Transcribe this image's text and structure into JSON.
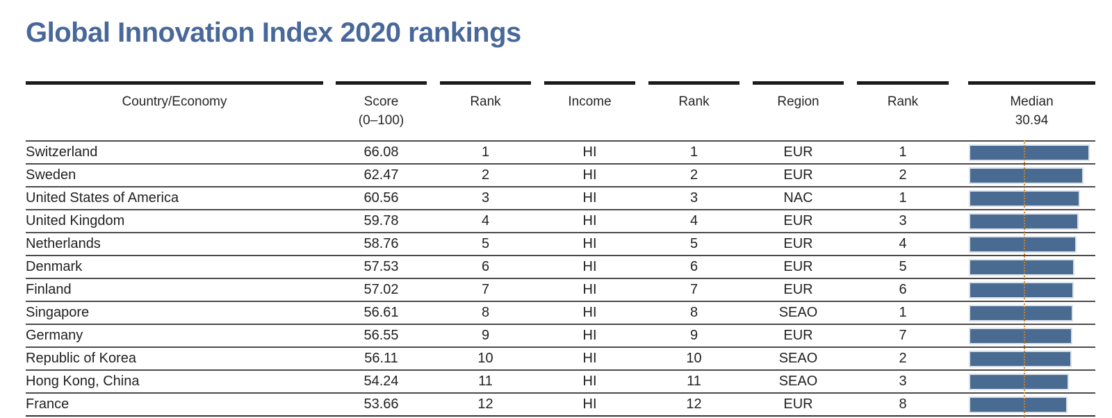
{
  "title": "Global Innovation Index 2020 rankings",
  "colors": {
    "title_blue": "#48689a",
    "bar_blue": "#4a6b91",
    "median_line_orange": "#c9822f",
    "header_rule_black": "#1b1b1b",
    "row_rule_gray": "#4a4a4a"
  },
  "table": {
    "columns": [
      {
        "label": "Country/Economy",
        "sublabel": ""
      },
      {
        "label": "Score",
        "sublabel": "(0–100)"
      },
      {
        "label": "Rank",
        "sublabel": ""
      },
      {
        "label": "Income",
        "sublabel": ""
      },
      {
        "label": "Rank",
        "sublabel": ""
      },
      {
        "label": "Region",
        "sublabel": ""
      },
      {
        "label": "Rank",
        "sublabel": ""
      },
      {
        "label": "Median",
        "sublabel": "30.94"
      }
    ],
    "rows": [
      {
        "country": "Switzerland",
        "score": "66.08",
        "score_rank": "1",
        "income": "HI",
        "income_rank": "1",
        "region": "EUR",
        "region_rank": "1",
        "bar_value": 66.08
      },
      {
        "country": "Sweden",
        "score": "62.47",
        "score_rank": "2",
        "income": "HI",
        "income_rank": "2",
        "region": "EUR",
        "region_rank": "2",
        "bar_value": 62.47
      },
      {
        "country": "United States of America",
        "score": "60.56",
        "score_rank": "3",
        "income": "HI",
        "income_rank": "3",
        "region": "NAC",
        "region_rank": "1",
        "bar_value": 60.56
      },
      {
        "country": "United Kingdom",
        "score": "59.78",
        "score_rank": "4",
        "income": "HI",
        "income_rank": "4",
        "region": "EUR",
        "region_rank": "3",
        "bar_value": 59.78
      },
      {
        "country": "Netherlands",
        "score": "58.76",
        "score_rank": "5",
        "income": "HI",
        "income_rank": "5",
        "region": "EUR",
        "region_rank": "4",
        "bar_value": 58.76
      },
      {
        "country": "Denmark",
        "score": "57.53",
        "score_rank": "6",
        "income": "HI",
        "income_rank": "6",
        "region": "EUR",
        "region_rank": "5",
        "bar_value": 57.53
      },
      {
        "country": "Finland",
        "score": "57.02",
        "score_rank": "7",
        "income": "HI",
        "income_rank": "7",
        "region": "EUR",
        "region_rank": "6",
        "bar_value": 57.02
      },
      {
        "country": "Singapore",
        "score": "56.61",
        "score_rank": "8",
        "income": "HI",
        "income_rank": "8",
        "region": "SEAO",
        "region_rank": "1",
        "bar_value": 56.61
      },
      {
        "country": "Germany",
        "score": "56.55",
        "score_rank": "9",
        "income": "HI",
        "income_rank": "9",
        "region": "EUR",
        "region_rank": "7",
        "bar_value": 56.55
      },
      {
        "country": "Republic of Korea",
        "score": "56.11",
        "score_rank": "10",
        "income": "HI",
        "income_rank": "10",
        "region": "SEAO",
        "region_rank": "2",
        "bar_value": 56.11
      },
      {
        "country": "Hong Kong, China",
        "score": "54.24",
        "score_rank": "11",
        "income": "HI",
        "income_rank": "11",
        "region": "SEAO",
        "region_rank": "3",
        "bar_value": 54.24
      },
      {
        "country": "France",
        "score": "53.66",
        "score_rank": "12",
        "income": "HI",
        "income_rank": "12",
        "region": "EUR",
        "region_rank": "8",
        "bar_value": 53.66
      }
    ],
    "median_value": 30.94
  },
  "chart_data": {
    "type": "table",
    "title": "Global Innovation Index 2020 rankings",
    "columns": [
      "Country/Economy",
      "Score (0–100)",
      "Rank",
      "Income",
      "Rank",
      "Region",
      "Rank",
      "Median 30.94"
    ],
    "bar_series": {
      "name": "Score (0–100)",
      "categories": [
        "Switzerland",
        "Sweden",
        "United States of America",
        "United Kingdom",
        "Netherlands",
        "Denmark",
        "Finland",
        "Singapore",
        "Germany",
        "Republic of Korea",
        "Hong Kong, China",
        "France"
      ],
      "values": [
        66.08,
        62.47,
        60.56,
        59.78,
        58.76,
        57.53,
        57.02,
        56.61,
        56.55,
        56.11,
        54.24,
        53.66
      ]
    },
    "score_ranks": [
      1,
      2,
      3,
      4,
      5,
      6,
      7,
      8,
      9,
      10,
      11,
      12
    ],
    "income_group": [
      "HI",
      "HI",
      "HI",
      "HI",
      "HI",
      "HI",
      "HI",
      "HI",
      "HI",
      "HI",
      "HI",
      "HI"
    ],
    "income_ranks": [
      1,
      2,
      3,
      4,
      5,
      6,
      7,
      8,
      9,
      10,
      11,
      12
    ],
    "regions": [
      "EUR",
      "EUR",
      "NAC",
      "EUR",
      "EUR",
      "EUR",
      "EUR",
      "SEAO",
      "EUR",
      "SEAO",
      "SEAO",
      "EUR"
    ],
    "region_ranks": [
      1,
      2,
      1,
      3,
      4,
      5,
      6,
      1,
      7,
      2,
      3,
      8
    ],
    "median_reference_line": 30.94,
    "bar_axis_range": [
      0,
      71
    ],
    "grid": "horizontal row rules only",
    "legend": "none"
  }
}
